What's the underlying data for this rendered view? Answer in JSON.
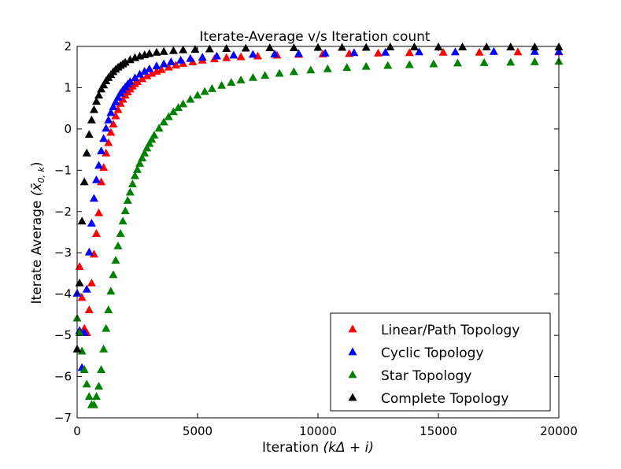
{
  "chart_data": {
    "type": "scatter",
    "title": "Iterate-Average v/s Iteration count",
    "xlabel_text": "Iteration",
    "xlabel_math": "(kΔ + i)",
    "ylabel_text": "Iterate Average",
    "ylabel_math": "(x̄",
    "ylabel_sub": "0, k",
    "ylabel_close": ")",
    "xlim": [
      0,
      20000
    ],
    "ylim": [
      -7,
      2
    ],
    "xticks": [
      0,
      5000,
      10000,
      15000,
      20000
    ],
    "yticks": [
      -7,
      -6,
      -5,
      -4,
      -3,
      -2,
      -1,
      0,
      1,
      2
    ],
    "grid": false,
    "legend_position": "lower-right",
    "marker": "triangle-up",
    "series": [
      {
        "name": "Linear/Path Topology",
        "color": "#ff0000",
        "x": [
          0,
          100,
          200,
          300,
          400,
          500,
          600,
          700,
          800,
          900,
          1000,
          1100,
          1200,
          1300,
          1400,
          1500,
          1600,
          1700,
          1800,
          1900,
          2000,
          2100,
          2200,
          2300,
          2400,
          2500,
          2700,
          2900,
          3100,
          3300,
          3500,
          3800,
          4100,
          4400,
          4800,
          5200,
          5700,
          6200,
          6800,
          7500,
          8300,
          9200,
          10200,
          11300,
          12500,
          13800,
          15200,
          16700,
          18300,
          20000
        ],
        "y": [
          -4.0,
          -3.35,
          -4.1,
          -4.85,
          -4.95,
          -4.4,
          -3.75,
          -3.05,
          -2.55,
          -2.05,
          -1.3,
          -0.95,
          -0.6,
          -0.35,
          -0.1,
          0.1,
          0.3,
          0.45,
          0.6,
          0.7,
          0.8,
          0.88,
          0.95,
          1.02,
          1.08,
          1.13,
          1.2,
          1.27,
          1.33,
          1.38,
          1.42,
          1.48,
          1.53,
          1.57,
          1.61,
          1.65,
          1.68,
          1.71,
          1.73,
          1.75,
          1.77,
          1.79,
          1.8,
          1.81,
          1.82,
          1.83,
          1.84,
          1.84,
          1.85,
          1.85
        ]
      },
      {
        "name": "Cyclic Topology",
        "color": "#0000ff",
        "x": [
          0,
          100,
          200,
          300,
          400,
          500,
          600,
          700,
          800,
          900,
          1000,
          1100,
          1200,
          1300,
          1400,
          1500,
          1600,
          1700,
          1800,
          1900,
          2000,
          2100,
          2200,
          2400,
          2600,
          2800,
          3000,
          3300,
          3600,
          3900,
          4300,
          4700,
          5200,
          5800,
          6500,
          7300,
          8200,
          9200,
          10300,
          11500,
          12800,
          14200,
          15700,
          17300,
          19000,
          20000
        ],
        "y": [
          -4.0,
          -4.9,
          -5.8,
          -4.95,
          -3.9,
          -3.0,
          -2.3,
          -1.7,
          -1.25,
          -0.9,
          -0.55,
          -0.25,
          0.0,
          0.2,
          0.38,
          0.52,
          0.64,
          0.75,
          0.85,
          0.93,
          1.0,
          1.07,
          1.13,
          1.22,
          1.31,
          1.38,
          1.44,
          1.51,
          1.56,
          1.61,
          1.65,
          1.69,
          1.72,
          1.75,
          1.77,
          1.79,
          1.8,
          1.81,
          1.82,
          1.83,
          1.84,
          1.85,
          1.85,
          1.86,
          1.86,
          1.86
        ]
      },
      {
        "name": "Star Topology",
        "color": "#008000",
        "x": [
          0,
          100,
          200,
          300,
          400,
          500,
          600,
          700,
          800,
          900,
          1000,
          1100,
          1200,
          1300,
          1400,
          1500,
          1600,
          1700,
          1800,
          1900,
          2000,
          2100,
          2200,
          2300,
          2400,
          2500,
          2600,
          2700,
          2800,
          2900,
          3000,
          3100,
          3200,
          3400,
          3600,
          3800,
          4000,
          4200,
          4400,
          4700,
          5000,
          5300,
          5600,
          6000,
          6400,
          6800,
          7300,
          7800,
          8400,
          9000,
          9700,
          10400,
          11200,
          12000,
          12900,
          13800,
          14800,
          15800,
          16900,
          18000,
          19000,
          20000
        ],
        "y": [
          -4.6,
          -4.95,
          -5.4,
          -5.85,
          -6.2,
          -6.5,
          -6.7,
          -6.7,
          -6.5,
          -6.25,
          -5.85,
          -5.35,
          -4.85,
          -4.4,
          -3.95,
          -3.55,
          -3.2,
          -2.85,
          -2.55,
          -2.25,
          -2.0,
          -1.75,
          -1.55,
          -1.35,
          -1.15,
          -1.0,
          -0.85,
          -0.72,
          -0.6,
          -0.48,
          -0.37,
          -0.27,
          -0.17,
          0.0,
          0.15,
          0.28,
          0.4,
          0.5,
          0.59,
          0.7,
          0.8,
          0.89,
          0.96,
          1.04,
          1.11,
          1.17,
          1.23,
          1.28,
          1.33,
          1.37,
          1.41,
          1.44,
          1.47,
          1.5,
          1.52,
          1.54,
          1.56,
          1.58,
          1.59,
          1.6,
          1.61,
          1.62
        ]
      },
      {
        "name": "Complete Topology",
        "color": "#000000",
        "x": [
          0,
          100,
          200,
          300,
          400,
          500,
          600,
          700,
          800,
          900,
          1000,
          1100,
          1200,
          1300,
          1400,
          1500,
          1600,
          1700,
          1800,
          1900,
          2000,
          2200,
          2400,
          2600,
          2800,
          3000,
          3300,
          3600,
          4000,
          4400,
          4900,
          5500,
          6200,
          7000,
          8000,
          9000,
          10000,
          11000,
          12000,
          13000,
          14000,
          15000,
          16000,
          17000,
          18000,
          19000,
          20000
        ],
        "y": [
          -5.35,
          -3.75,
          -2.25,
          -1.3,
          -0.6,
          -0.15,
          0.2,
          0.45,
          0.65,
          0.8,
          0.95,
          1.05,
          1.15,
          1.23,
          1.3,
          1.37,
          1.43,
          1.48,
          1.52,
          1.56,
          1.6,
          1.66,
          1.71,
          1.75,
          1.78,
          1.81,
          1.84,
          1.86,
          1.88,
          1.9,
          1.91,
          1.92,
          1.93,
          1.94,
          1.95,
          1.95,
          1.96,
          1.96,
          1.96,
          1.97,
          1.97,
          1.97,
          1.97,
          1.97,
          1.97,
          1.97,
          1.97
        ]
      }
    ]
  }
}
